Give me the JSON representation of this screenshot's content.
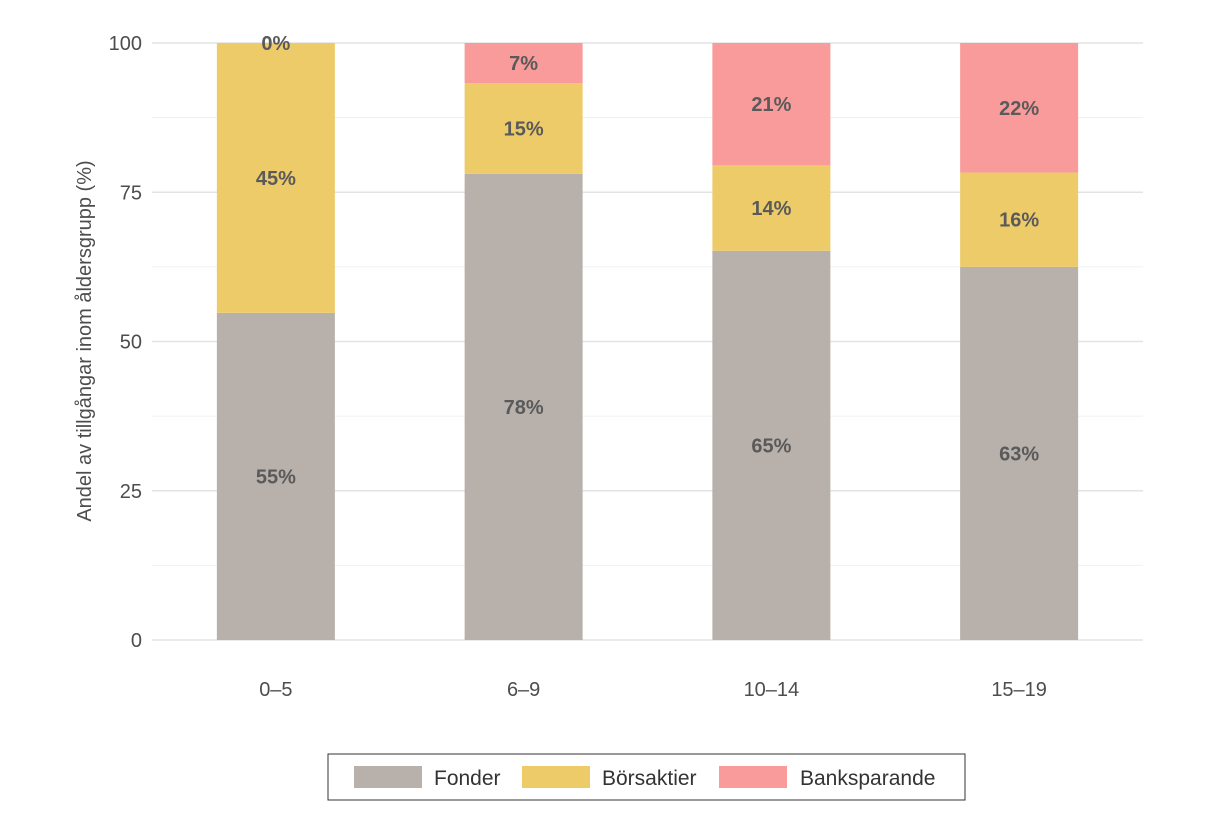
{
  "chart_data": {
    "type": "bar",
    "stacked": true,
    "categories": [
      "0–5",
      "6–9",
      "10–14",
      "15–19"
    ],
    "ylabel": "Andel av tillgångar inom åldersgrupp (%)",
    "ylim": [
      0,
      100
    ],
    "yticks": [
      "0",
      "25",
      "50",
      "75",
      "100"
    ],
    "grid": true,
    "legend_position": "bottom",
    "series": [
      {
        "name": "Fonder",
        "color": "#b8b0ab",
        "values": [
          54.8,
          78.1,
          65.2,
          62.5
        ],
        "labels": [
          "55%",
          "78%",
          "65%",
          "63%"
        ]
      },
      {
        "name": "Börsaktier",
        "color": "#eecb69",
        "values": [
          45.2,
          15.2,
          14.3,
          15.8
        ],
        "labels": [
          "45%",
          "15%",
          "14%",
          "16%"
        ]
      },
      {
        "name": "Banksparande",
        "color": "#f99b9b",
        "values": [
          0.0,
          6.7,
          20.5,
          21.7
        ],
        "labels": [
          "0%",
          "7%",
          "21%",
          "22%"
        ]
      }
    ]
  }
}
